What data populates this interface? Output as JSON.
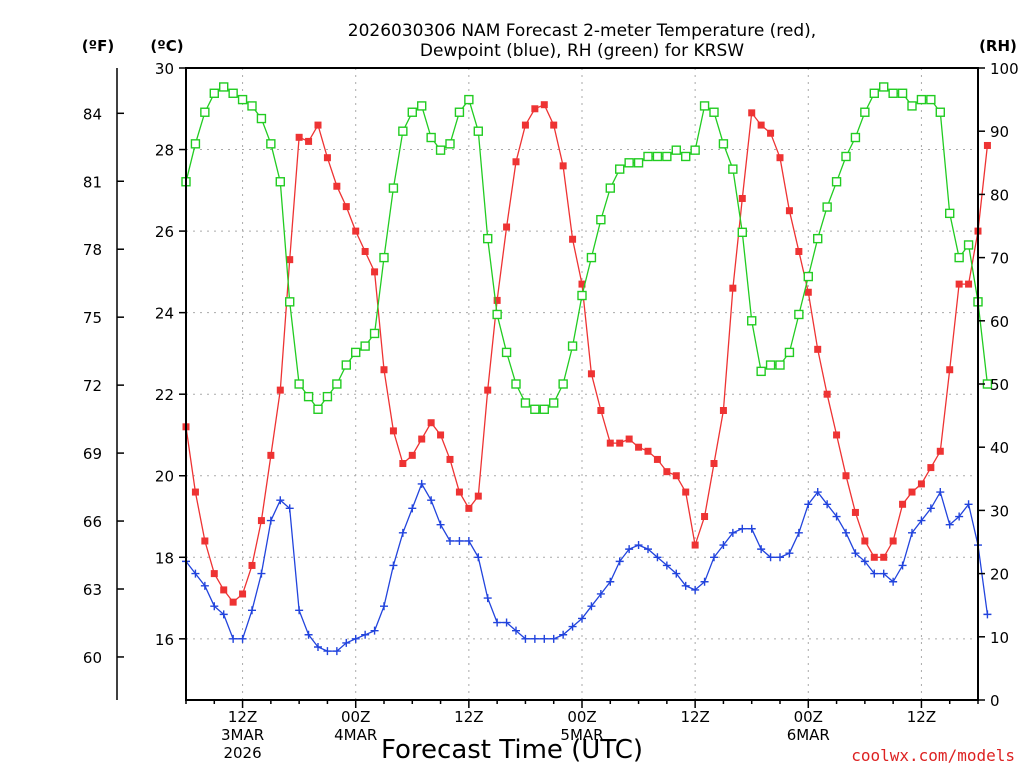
{
  "chart_data": {
    "type": "line",
    "title": [
      "2026030306 NAM Forecast 2-meter Temperature (red),",
      "Dewpoint (blue), RH (green) for KRSW"
    ],
    "xlabel": "Forecast Time (UTC)",
    "left_units": [
      "(ºF)",
      "(ºC)"
    ],
    "right_units": "(RH)",
    "celsius_axis": {
      "range": [
        14.5,
        30
      ],
      "ticks": [
        16,
        18,
        20,
        22,
        24,
        26,
        28,
        30
      ]
    },
    "fahrenheit_ticks": [
      60,
      63,
      66,
      69,
      72,
      75,
      78,
      81,
      84
    ],
    "rh_axis": {
      "range": [
        0,
        100
      ],
      "ticks": [
        0,
        10,
        20,
        30,
        40,
        50,
        60,
        70,
        80,
        90,
        100
      ]
    },
    "hour_range": [
      6,
      90
    ],
    "x_ticks": [
      {
        "hour": 12,
        "label": [
          "12Z",
          "3MAR",
          "2026"
        ]
      },
      {
        "hour": 24,
        "label": [
          "00Z",
          "4MAR"
        ]
      },
      {
        "hour": 36,
        "label": [
          "12Z"
        ]
      },
      {
        "hour": 48,
        "label": [
          "00Z",
          "5MAR"
        ]
      },
      {
        "hour": 60,
        "label": [
          "12Z"
        ]
      },
      {
        "hour": 72,
        "label": [
          "00Z",
          "6MAR"
        ]
      },
      {
        "hour": 84,
        "label": [
          "12Z"
        ]
      }
    ],
    "colors": {
      "temperature": "#ee3333",
      "dewpoint": "#2244dd",
      "rh": "#22cc22",
      "grid": "#aaaaaa"
    },
    "series": [
      {
        "name": "Temperature",
        "unit": "C",
        "axis": "celsius",
        "color": "#ee3333",
        "marker": "filled-square",
        "start_hour": 6,
        "values": [
          21.2,
          19.6,
          18.4,
          17.6,
          17.2,
          16.9,
          17.1,
          17.8,
          18.9,
          20.5,
          22.1,
          25.3,
          28.3,
          28.2,
          28.6,
          27.8,
          27.1,
          26.6,
          26.0,
          25.5,
          25.0,
          22.6,
          21.1,
          20.3,
          20.5,
          20.9,
          21.3,
          21.0,
          20.4,
          19.6,
          19.2,
          19.5,
          22.1,
          24.3,
          26.1,
          27.7,
          28.6,
          29.0,
          29.1,
          28.6,
          27.6,
          25.8,
          24.7,
          22.5,
          21.6,
          20.8,
          20.8,
          20.9,
          20.7,
          20.6,
          20.4,
          20.1,
          20.0,
          19.6,
          18.3,
          19.0,
          20.3,
          21.6,
          24.6,
          26.8,
          28.9,
          28.6,
          28.4,
          27.8,
          26.5,
          25.5,
          24.5,
          23.1,
          22.0,
          21.0,
          20.0,
          19.1,
          18.4,
          18.0,
          18.0,
          18.4,
          19.3,
          19.6,
          19.8,
          20.2,
          20.6,
          22.6,
          24.7,
          24.7,
          26.0,
          28.1
        ]
      },
      {
        "name": "Dewpoint",
        "unit": "C",
        "axis": "celsius",
        "color": "#2244dd",
        "marker": "plus",
        "start_hour": 6,
        "values": [
          17.9,
          17.6,
          17.3,
          16.8,
          16.6,
          16.0,
          16.0,
          16.7,
          17.6,
          18.9,
          19.4,
          19.2,
          16.7,
          16.1,
          15.8,
          15.7,
          15.7,
          15.9,
          16.0,
          16.1,
          16.2,
          16.8,
          17.8,
          18.6,
          19.2,
          19.8,
          19.4,
          18.8,
          18.4,
          18.4,
          18.4,
          18.0,
          17.0,
          16.4,
          16.4,
          16.2,
          16.0,
          16.0,
          16.0,
          16.0,
          16.1,
          16.3,
          16.5,
          16.8,
          17.1,
          17.4,
          17.9,
          18.2,
          18.3,
          18.2,
          18.0,
          17.8,
          17.6,
          17.3,
          17.2,
          17.4,
          18.0,
          18.3,
          18.6,
          18.7,
          18.7,
          18.2,
          18.0,
          18.0,
          18.1,
          18.6,
          19.3,
          19.6,
          19.3,
          19.0,
          18.6,
          18.1,
          17.9,
          17.6,
          17.6,
          17.4,
          17.8,
          18.6,
          18.9,
          19.2,
          19.6,
          18.8,
          19.0,
          19.3,
          18.3,
          16.6
        ]
      },
      {
        "name": "RH",
        "unit": "%",
        "axis": "rh",
        "color": "#22cc22",
        "marker": "open-square",
        "start_hour": 6,
        "values": [
          82,
          88,
          93,
          96,
          97,
          96,
          95,
          94,
          92,
          88,
          82,
          63,
          50,
          48,
          46,
          48,
          50,
          53,
          55,
          56,
          58,
          70,
          81,
          90,
          93,
          94,
          89,
          87,
          88,
          93,
          95,
          90,
          73,
          61,
          55,
          50,
          47,
          46,
          46,
          47,
          50,
          56,
          64,
          70,
          76,
          81,
          84,
          85,
          85,
          86,
          86,
          86,
          87,
          86,
          87,
          94,
          93,
          88,
          84,
          74,
          60,
          52,
          53,
          53,
          55,
          61,
          67,
          73,
          78,
          82,
          86,
          89,
          93,
          96,
          97,
          96,
          96,
          94,
          95,
          95,
          93,
          77,
          70,
          72,
          63,
          50
        ]
      }
    ],
    "watermark": "coolwx.com/models"
  }
}
